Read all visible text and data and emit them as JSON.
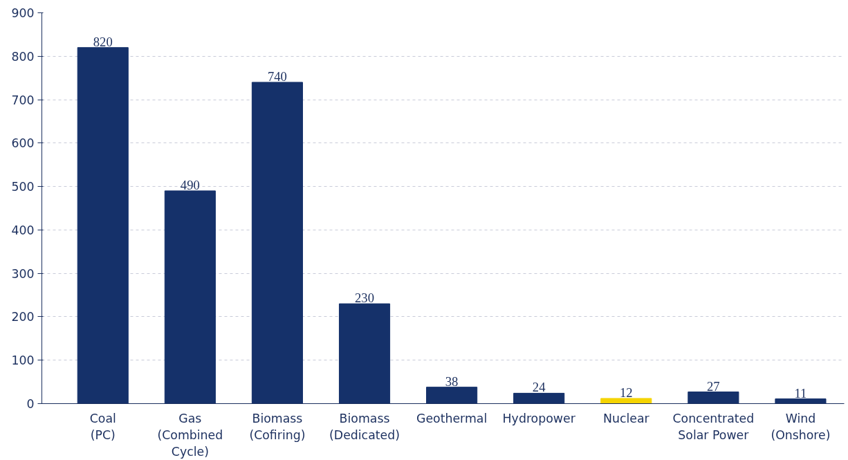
{
  "chart_data": {
    "type": "bar",
    "categories": [
      "Coal\n(PC)",
      "Gas\n(Combined\nCycle)",
      "Biomass\n(Cofiring)",
      "Biomass\n(Dedicated)",
      "Geothermal",
      "Hydropower",
      "Nuclear",
      "Concentrated\nSolar Power",
      "Wind\n(Onshore)"
    ],
    "values": [
      820,
      490,
      740,
      230,
      38,
      24,
      12,
      27,
      11
    ],
    "colors": [
      "#15316a",
      "#15316a",
      "#15316a",
      "#15316a",
      "#15316a",
      "#15316a",
      "#f5d400",
      "#15316a",
      "#15316a"
    ],
    "ylim": [
      0,
      900
    ],
    "yticks": [
      0,
      100,
      200,
      300,
      400,
      500,
      600,
      700,
      800,
      900
    ],
    "grid": "y",
    "data_labels": true
  }
}
